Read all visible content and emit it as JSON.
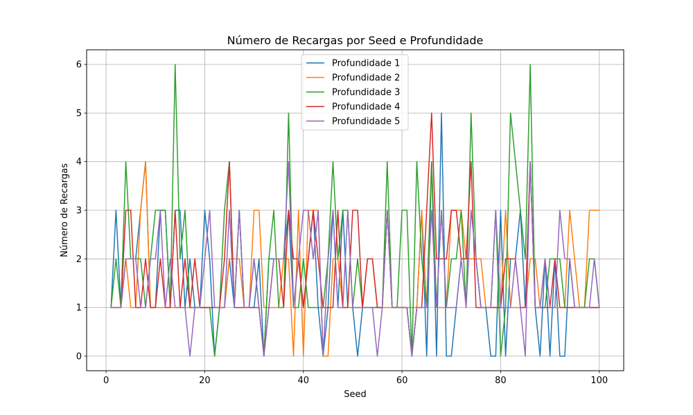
{
  "chart_data": {
    "type": "line",
    "title": "Número de Recargas por Seed e Profundidade",
    "xlabel": "Seed",
    "ylabel": "Número de Recargas",
    "xlim": [
      -3.95,
      104.95
    ],
    "ylim": [
      -0.3,
      6.3
    ],
    "xticks": [
      0,
      20,
      40,
      60,
      80,
      100
    ],
    "yticks": [
      0,
      1,
      2,
      3,
      4,
      5,
      6
    ],
    "grid": true,
    "legend_position": "top-center",
    "x": [
      1,
      2,
      3,
      4,
      5,
      6,
      7,
      8,
      9,
      10,
      11,
      12,
      13,
      14,
      15,
      16,
      17,
      18,
      19,
      20,
      21,
      22,
      23,
      24,
      25,
      26,
      27,
      28,
      29,
      30,
      31,
      32,
      33,
      34,
      35,
      36,
      37,
      38,
      39,
      40,
      41,
      42,
      43,
      44,
      45,
      46,
      47,
      48,
      49,
      50,
      51,
      52,
      53,
      54,
      55,
      56,
      57,
      58,
      59,
      60,
      61,
      62,
      63,
      64,
      65,
      66,
      67,
      68,
      69,
      70,
      71,
      72,
      73,
      74,
      75,
      76,
      77,
      78,
      79,
      80,
      81,
      82,
      83,
      84,
      85,
      86,
      87,
      88,
      89,
      90,
      91,
      92,
      93,
      94,
      95,
      96,
      97,
      98,
      99,
      100
    ],
    "series": [
      {
        "name": "Profundidade 1",
        "color": "#1f77b4",
        "values": [
          1,
          3,
          1,
          2,
          2,
          2,
          3,
          4,
          1,
          1,
          3,
          3,
          1,
          3,
          3,
          1,
          2,
          1,
          1,
          3,
          2,
          0,
          1,
          1,
          2,
          1,
          3,
          1,
          1,
          1,
          2,
          0,
          2,
          2,
          2,
          2,
          3,
          1,
          2,
          1,
          2,
          3,
          1,
          0,
          1,
          3,
          1,
          3,
          1,
          1,
          0,
          1,
          1,
          1,
          1,
          1,
          3,
          1,
          1,
          1,
          1,
          0,
          1,
          3,
          0,
          4,
          0,
          5,
          0,
          0,
          1,
          2,
          2,
          2,
          2,
          1,
          1,
          0,
          0,
          3,
          0,
          2,
          2,
          3,
          1,
          4,
          1,
          0,
          2,
          0,
          2,
          0,
          0,
          2,
          1,
          1,
          1,
          1,
          1,
          1
        ]
      },
      {
        "name": "Profundidade 2",
        "color": "#ff7f0e",
        "values": [
          1,
          1,
          1,
          2,
          1,
          1,
          3,
          4,
          1,
          1,
          1,
          1,
          1,
          1,
          1,
          1,
          1,
          1,
          1,
          1,
          1,
          1,
          1,
          1,
          2,
          2,
          2,
          1,
          1,
          3,
          3,
          1,
          1,
          1,
          1,
          2,
          2,
          0,
          3,
          0,
          3,
          3,
          3,
          0,
          0,
          2,
          2,
          1,
          1,
          1,
          1,
          1,
          2,
          2,
          1,
          1,
          1,
          1,
          1,
          1,
          1,
          1,
          1,
          3,
          1,
          4,
          1,
          1,
          1,
          3,
          3,
          3,
          2,
          2,
          2,
          2,
          1,
          1,
          1,
          1,
          3,
          1,
          1,
          1,
          1,
          2,
          2,
          1,
          2,
          1,
          1,
          1,
          1,
          3,
          2,
          1,
          1,
          3,
          3,
          3
        ]
      },
      {
        "name": "Profundidade 3",
        "color": "#2ca02c",
        "values": [
          1,
          2,
          1,
          4,
          2,
          2,
          2,
          1,
          2,
          3,
          3,
          3,
          1,
          6,
          2,
          3,
          1,
          1,
          1,
          1,
          1,
          0,
          1,
          3,
          4,
          1,
          3,
          1,
          1,
          2,
          1,
          0,
          2,
          3,
          1,
          1,
          5,
          1,
          1,
          2,
          1,
          1,
          1,
          1,
          2,
          4,
          2,
          3,
          3,
          1,
          2,
          1,
          1,
          1,
          1,
          1,
          4,
          1,
          1,
          3,
          3,
          0,
          4,
          2,
          1,
          4,
          1,
          3,
          1,
          2,
          2,
          3,
          1,
          5,
          2,
          1,
          1,
          1,
          3,
          0,
          1,
          5,
          4,
          3,
          2,
          6,
          1,
          1,
          1,
          2,
          2,
          2,
          1,
          1,
          1,
          1,
          1,
          2,
          2,
          1
        ]
      },
      {
        "name": "Profundidade 4",
        "color": "#d62728",
        "values": [
          1,
          1,
          1,
          3,
          3,
          1,
          1,
          2,
          1,
          1,
          2,
          1,
          1,
          3,
          1,
          2,
          1,
          2,
          1,
          1,
          1,
          1,
          1,
          2,
          4,
          1,
          1,
          1,
          1,
          1,
          1,
          0,
          1,
          2,
          2,
          1,
          3,
          2,
          2,
          1,
          2,
          3,
          2,
          1,
          1,
          1,
          3,
          1,
          1,
          3,
          3,
          1,
          2,
          2,
          1,
          1,
          3,
          1,
          1,
          1,
          1,
          0,
          1,
          1,
          3,
          5,
          2,
          2,
          2,
          3,
          3,
          2,
          2,
          4,
          1,
          1,
          1,
          1,
          1,
          1,
          2,
          2,
          2,
          1,
          1,
          4,
          1,
          1,
          1,
          1,
          2,
          1,
          1,
          1,
          1,
          1,
          1,
          1,
          1,
          1
        ]
      },
      {
        "name": "Profundidade 5",
        "color": "#9467bd",
        "values": [
          1,
          1,
          1,
          2,
          2,
          2,
          1,
          1,
          2,
          2,
          3,
          1,
          2,
          1,
          1,
          1,
          0,
          1,
          1,
          2,
          3,
          1,
          1,
          1,
          3,
          1,
          3,
          1,
          1,
          2,
          1,
          0,
          1,
          2,
          2,
          2,
          4,
          1,
          2,
          3,
          3,
          2,
          3,
          0,
          2,
          3,
          1,
          1,
          3,
          1,
          1,
          1,
          1,
          1,
          0,
          1,
          3,
          1,
          1,
          1,
          1,
          0,
          1,
          1,
          1,
          3,
          1,
          3,
          1,
          1,
          1,
          2,
          1,
          3,
          2,
          1,
          1,
          1,
          3,
          1,
          1,
          1,
          2,
          1,
          0,
          4,
          1,
          1,
          2,
          1,
          1,
          3,
          2,
          2,
          1,
          1,
          1,
          1,
          2,
          1
        ]
      }
    ]
  }
}
